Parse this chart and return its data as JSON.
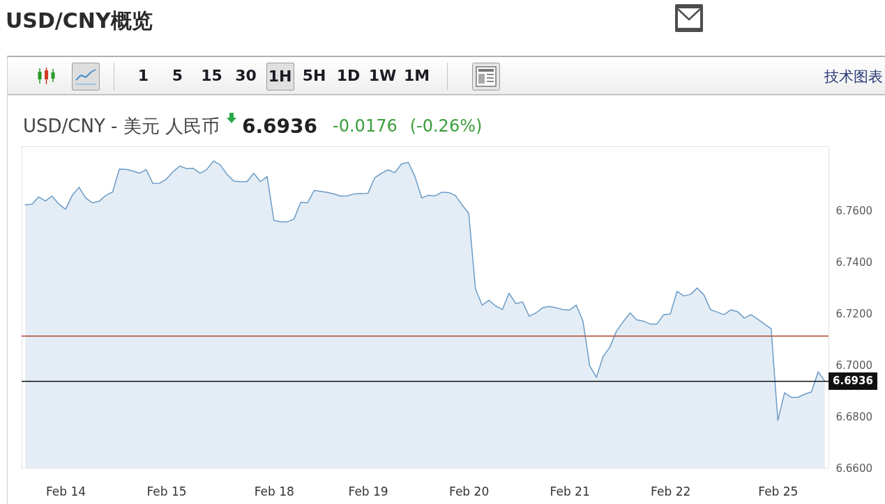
{
  "chart_data": {
    "type": "area",
    "title": "USD/CNY概览",
    "subtitle": "USD/CNY - 美元 人民币",
    "annotations": [
      "6.6936",
      "-0.0176",
      "(-0.26%)",
      "1 5",
      "15",
      "30",
      "1H",
      "5H",
      "1D",
      "1W",
      "1M",
      "技术图表"
    ],
    "categories": [
      null,
      null,
      null,
      null,
      null,
      null,
      "Feb 14",
      null,
      null,
      null,
      null,
      null,
      null,
      null,
      null,
      null,
      null,
      null,
      null,
      null,
      null,
      "Feb 15",
      null,
      null,
      null,
      null,
      null,
      null,
      null,
      null,
      null,
      null,
      null,
      null,
      null,
      null,
      null,
      "Feb 18",
      null,
      null,
      null,
      null,
      null,
      null,
      null,
      null,
      null,
      null,
      null,
      null,
      null,
      "Feb 19",
      null,
      null,
      null,
      null,
      null,
      null,
      null,
      null,
      null,
      null,
      null,
      null,
      null,
      null,
      "Feb 20",
      null,
      null,
      null,
      null,
      null,
      null,
      null,
      null,
      null,
      null,
      null,
      null,
      null,
      null,
      "Feb 21",
      null,
      null,
      null,
      null,
      null,
      null,
      null,
      null,
      null,
      null,
      null,
      null,
      null,
      null,
      "Feb 22",
      null,
      null,
      null,
      null,
      null,
      null,
      null,
      null,
      null,
      null,
      null,
      null,
      null,
      null,
      null,
      "Feb 25",
      null,
      null,
      null,
      null,
      null,
      null,
      null
    ],
    "values": [
      6.7622,
      6.7625,
      6.7653,
      6.7637,
      6.7656,
      6.7625,
      6.7605,
      6.7659,
      6.769,
      6.7649,
      6.763,
      6.7636,
      6.7659,
      6.7672,
      6.7761,
      6.776,
      6.7754,
      6.7745,
      6.7759,
      6.7705,
      6.7706,
      6.7722,
      6.7751,
      6.7773,
      6.7763,
      6.7764,
      6.7745,
      6.7759,
      6.7792,
      6.7778,
      6.7741,
      6.7715,
      6.7712,
      6.7712,
      6.7745,
      6.7712,
      6.7732,
      6.7562,
      6.7556,
      6.7556,
      6.7567,
      6.7632,
      6.763,
      6.7678,
      6.7674,
      6.767,
      6.7664,
      6.7656,
      6.7657,
      6.7665,
      6.7666,
      6.7667,
      6.7727,
      6.7745,
      6.7758,
      6.7747,
      6.7781,
      6.7787,
      6.7732,
      6.7649,
      6.7659,
      6.7657,
      6.7671,
      6.767,
      6.7659,
      6.7622,
      6.7589,
      6.7295,
      6.7232,
      6.7251,
      6.7229,
      6.7215,
      6.7279,
      6.7238,
      6.7245,
      6.7189,
      6.7202,
      6.7222,
      6.7227,
      6.7222,
      6.7215,
      6.7213,
      6.7232,
      6.717,
      6.6997,
      6.6952,
      6.7033,
      6.7069,
      6.7132,
      6.7168,
      6.7202,
      6.7175,
      6.717,
      6.7159,
      6.7159,
      6.7195,
      6.7198,
      6.7286,
      6.7268,
      6.7274,
      6.7299,
      6.7272,
      6.7214,
      6.7205,
      6.7195,
      6.7214,
      6.7207,
      6.7182,
      6.7195,
      6.7178,
      6.7159,
      6.7141,
      6.6784,
      6.6892,
      6.6874,
      6.6874,
      6.6886,
      6.6895,
      6.6973,
      6.6936
    ],
    "color": "#6b9bc6",
    "ylim": [
      6.66,
      6.785
    ],
    "yticks": [
      {
        "value": 6.66,
        "label": "6.6600"
      },
      {
        "value": 6.68,
        "label": "6.6800"
      },
      {
        "value": 6.7,
        "label": "6.7000"
      },
      {
        "value": 6.72,
        "label": "6.7200"
      },
      {
        "value": 6.74,
        "label": "6.7400"
      },
      {
        "value": 6.76,
        "label": "6.7600"
      }
    ],
    "ref_lines": [
      {
        "axis": "y",
        "value": 6.7112,
        "color": "#b4442e"
      },
      {
        "axis": "y",
        "value": 6.6936,
        "label": "6.6936",
        "color": "#111111"
      }
    ]
  }
}
